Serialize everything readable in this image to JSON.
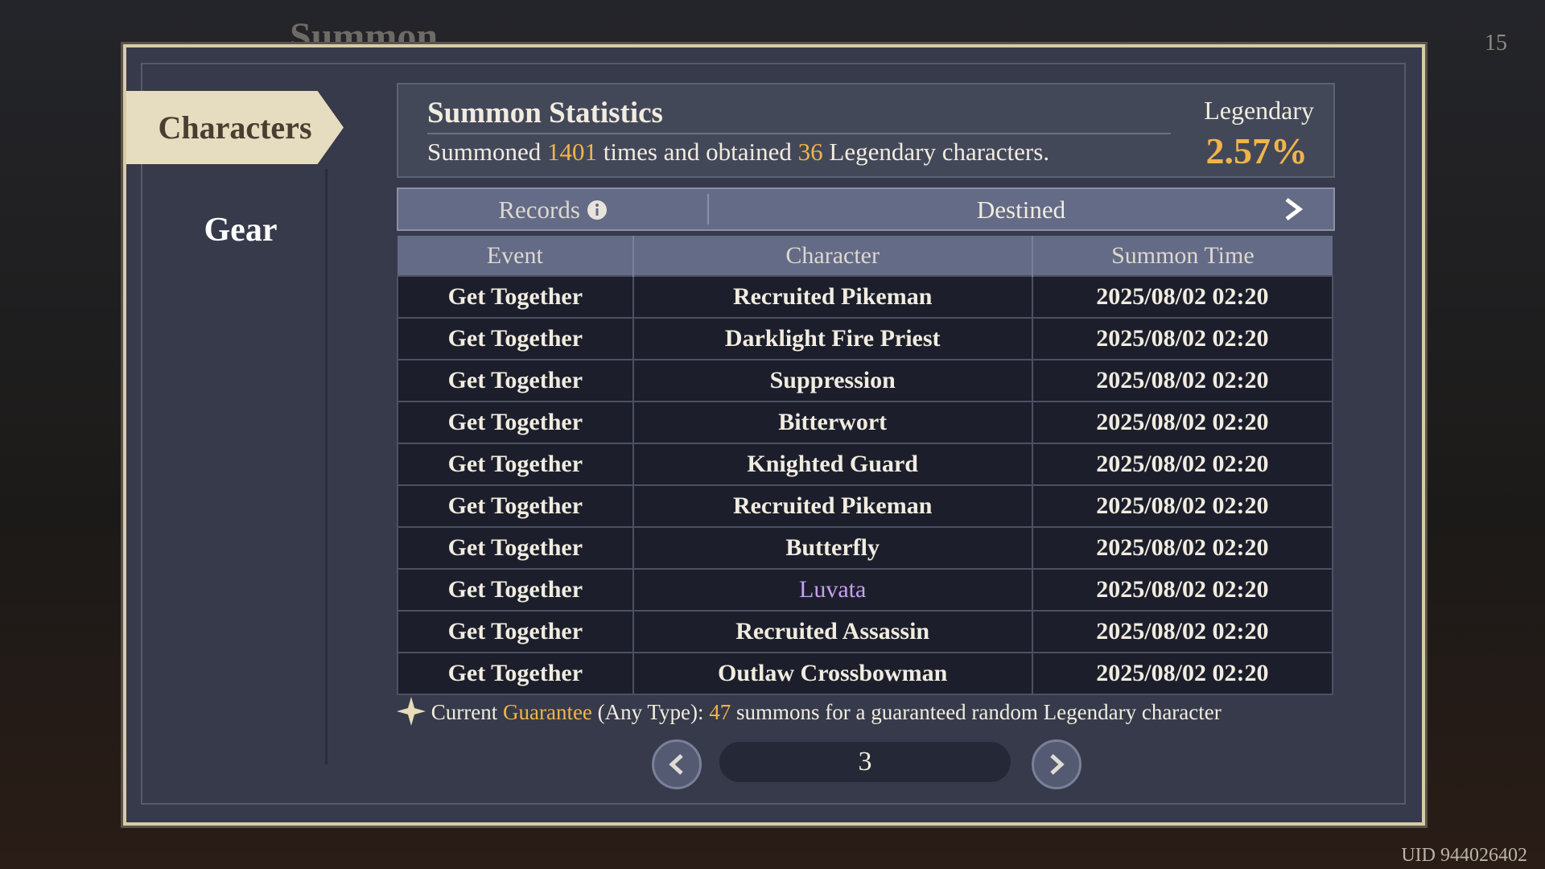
{
  "background": {
    "title": "Summon",
    "counter": "15",
    "uid": "UID 944026402"
  },
  "tabs": [
    "Characters",
    "Gear"
  ],
  "stats": {
    "title": "Summon Statistics",
    "prefix": "Summoned",
    "total": "1401",
    "middle": "times and obtained",
    "legendary_count": "36",
    "suffix": "Legendary characters.",
    "rate_label": "Legendary",
    "rate": "2.57%"
  },
  "filter": {
    "records": "Records",
    "selected": "Destined"
  },
  "table": {
    "columns": [
      "Event",
      "Character",
      "Summon Time"
    ],
    "rows": [
      [
        "Get Together",
        "Recruited Pikeman",
        "2025/08/02 02:20"
      ],
      [
        "Get Together",
        "Darklight Fire Priest",
        "2025/08/02 02:20"
      ],
      [
        "Get Together",
        "Suppression",
        "2025/08/02 02:20"
      ],
      [
        "Get Together",
        "Bitterwort",
        "2025/08/02 02:20"
      ],
      [
        "Get Together",
        "Knighted Guard",
        "2025/08/02 02:20"
      ],
      [
        "Get Together",
        "Recruited Pikeman",
        "2025/08/02 02:20"
      ],
      [
        "Get Together",
        "Butterfly",
        "2025/08/02 02:20"
      ],
      [
        "Get Together",
        "Luvata",
        "2025/08/02 02:20"
      ],
      [
        "Get Together",
        "Recruited Assassin",
        "2025/08/02 02:20"
      ],
      [
        "Get Together",
        "Outlaw Crossbowman",
        "2025/08/02 02:20"
      ]
    ]
  },
  "guarantee": {
    "prefix": "Current",
    "highlight": "Guarantee",
    "type": "(Any Type):",
    "count": "47",
    "suffix": "summons for a guaranteed random Legendary character"
  },
  "page": "3"
}
